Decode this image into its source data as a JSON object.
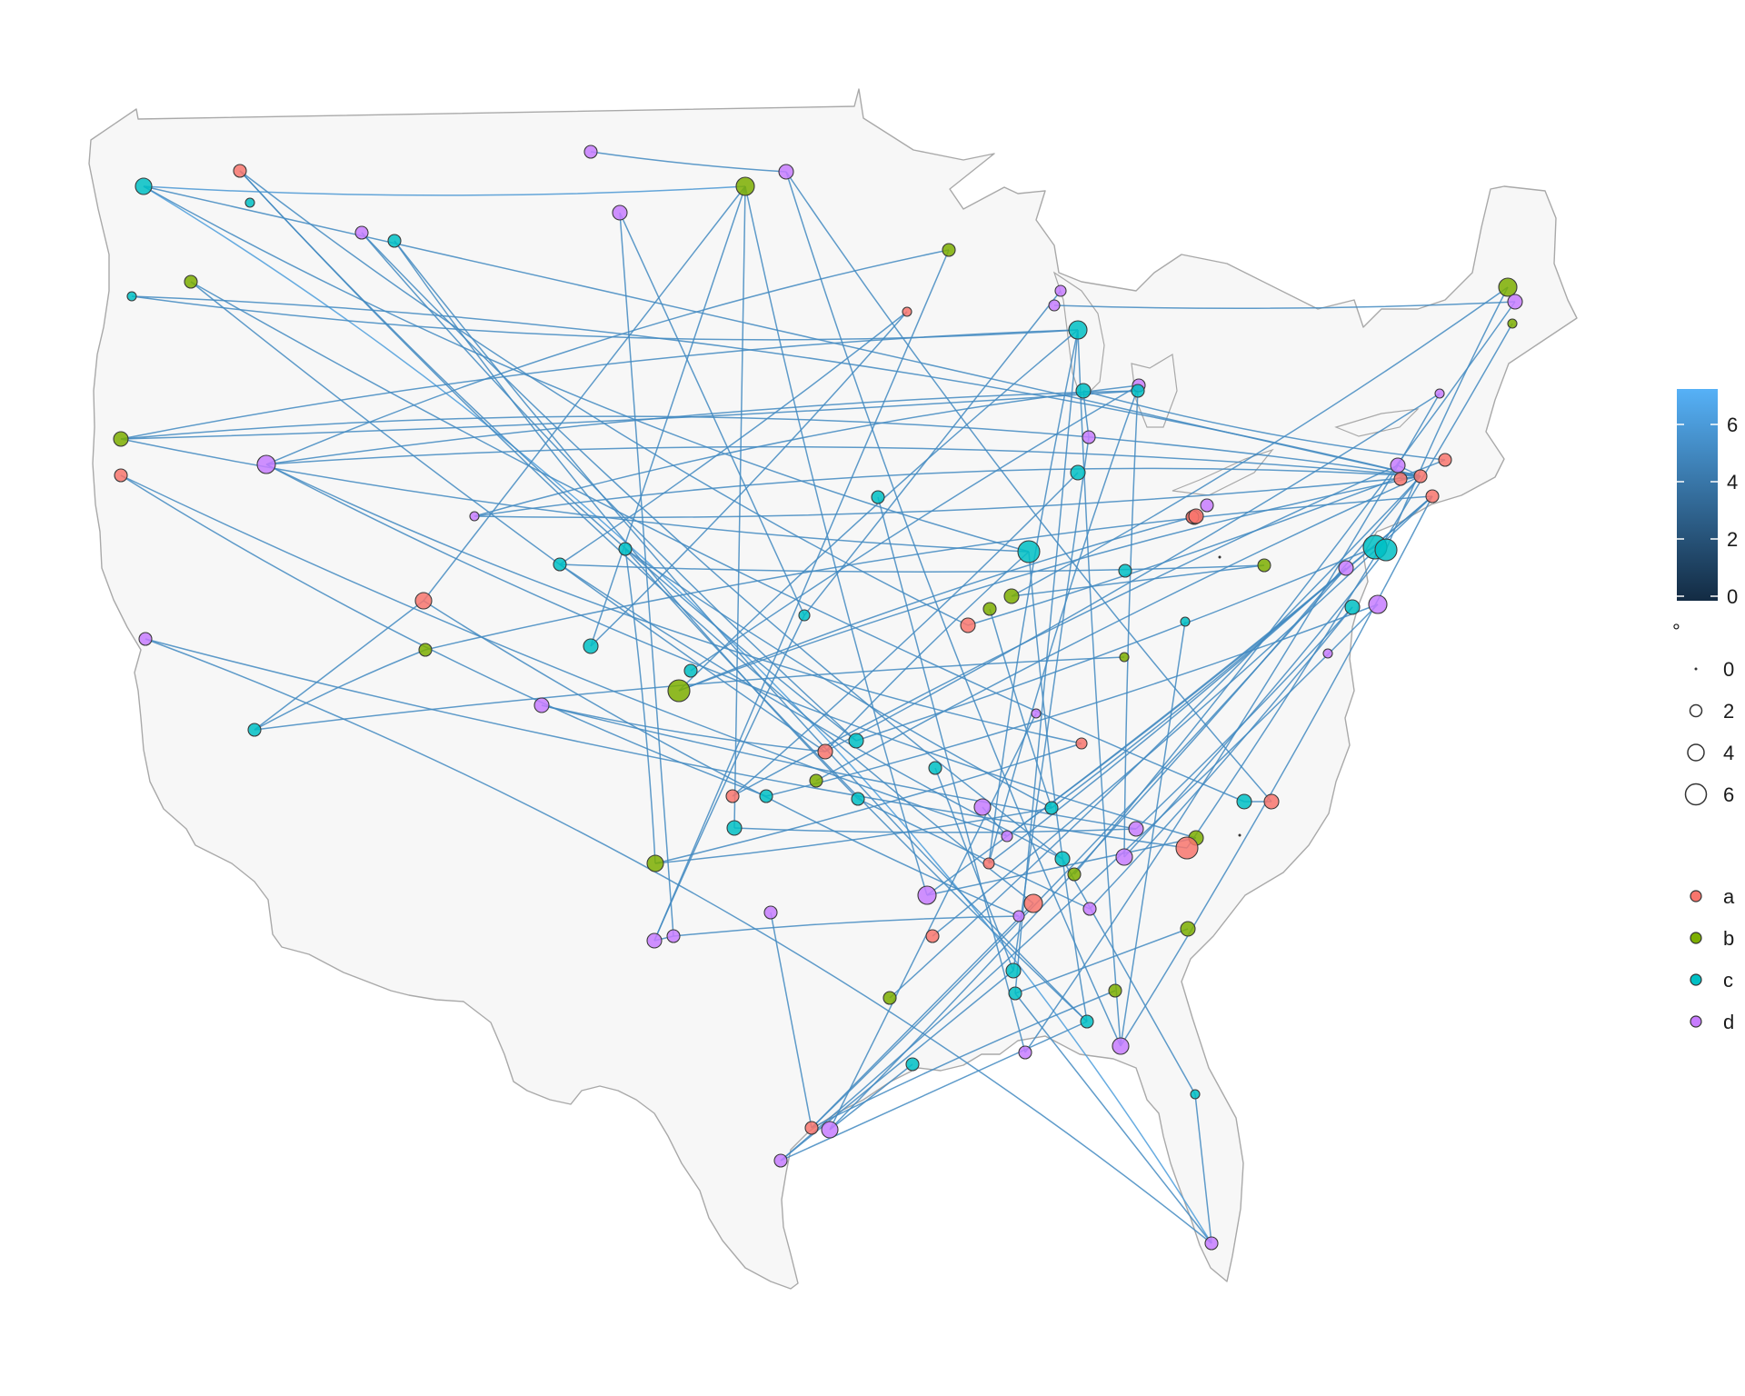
{
  "chart_data": {
    "type": "network-map",
    "colors": {
      "a": "#f8766d",
      "b": "#7cae00",
      "c": "#00bfc4",
      "d": "#c77cff",
      "land": "#f7f7f7",
      "border": "#a9a9a9",
      "edge_low": "#132b43",
      "edge_high": "#56b1f7"
    },
    "legend_colorbar": {
      "ticks": [
        "0",
        "2",
        "4",
        "6"
      ]
    },
    "legend_size": {
      "title": "°",
      "labels": [
        "0",
        "2",
        "4",
        "6"
      ]
    },
    "legend_group": {
      "labels": [
        "a",
        "b",
        "c",
        "d"
      ]
    }
  }
}
